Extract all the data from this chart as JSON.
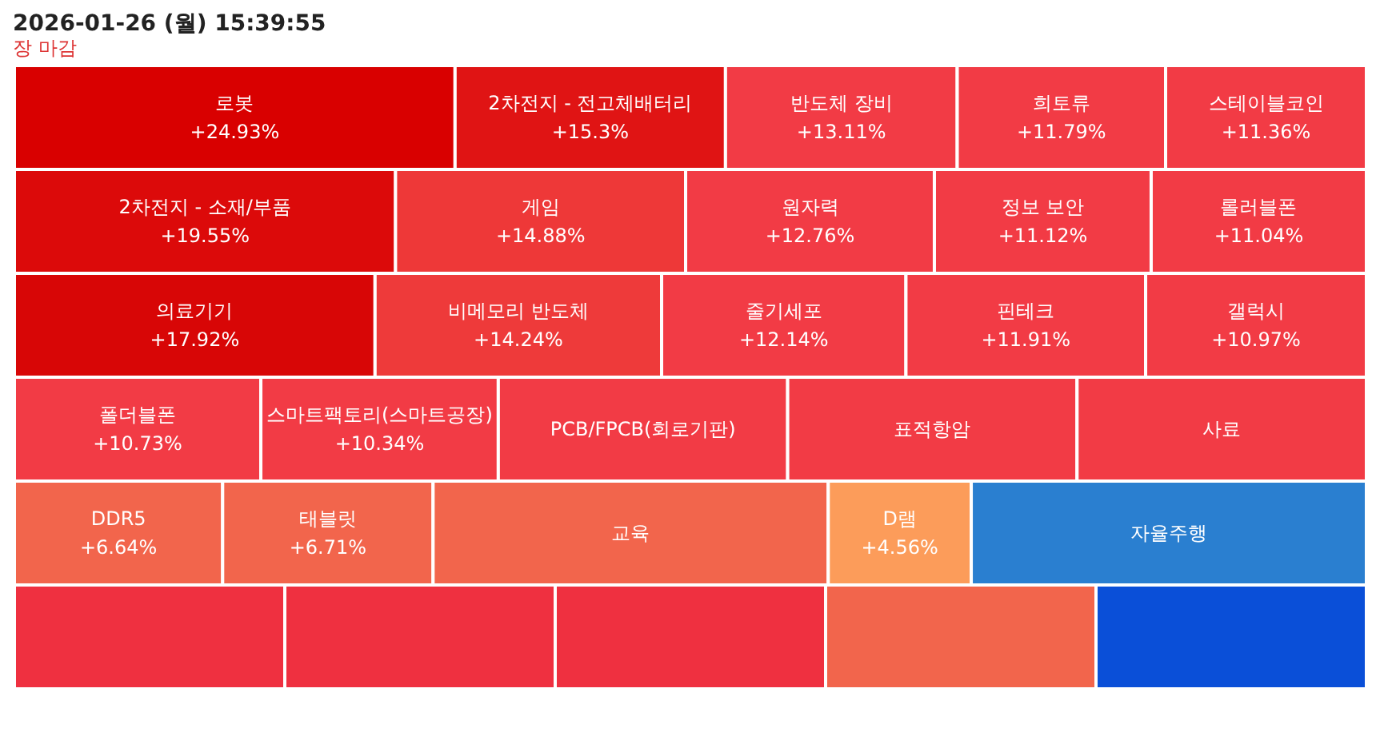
{
  "chart_data": {
    "type": "other",
    "title": "2026-01-26 (월) 15:39:55",
    "subtitle": "장 마감",
    "categories": [
      "로봇",
      "2차전지 - 전고체배터리",
      "반도체 장비",
      "희토류",
      "스테이블코인",
      "2차전지 - 소재/부품",
      "게임",
      "원자력",
      "정보 보안",
      "롤러블폰",
      "의료기기",
      "비메모리 반도체",
      "줄기세포",
      "핀테크",
      "갤럭시",
      "폴더블폰",
      "스마트팩토리(스마트공장)",
      "PCB/FPCB(회로기판)",
      "표적항암",
      "사료",
      "DDR5",
      "태블릿",
      "교육",
      "D램",
      "자율주행",
      null,
      null,
      null,
      null,
      null
    ],
    "values": [
      24.93,
      15.3,
      13.11,
      11.79,
      11.36,
      19.55,
      14.88,
      12.76,
      11.12,
      11.04,
      17.92,
      14.24,
      12.14,
      11.91,
      10.97,
      10.73,
      10.34,
      null,
      null,
      null,
      6.64,
      6.71,
      null,
      4.56,
      null,
      null,
      null,
      null,
      null,
      null
    ],
    "value_labels": [
      "+24.93%",
      "+15.3%",
      "+13.11%",
      "+11.79%",
      "+11.36%",
      "+19.55%",
      "+14.88%",
      "+12.76%",
      "+11.12%",
      "+11.04%",
      "+17.92%",
      "+14.24%",
      "+12.14%",
      "+11.91%",
      "+10.97%",
      "+10.73%",
      "+10.34%",
      null,
      null,
      null,
      "+6.64%",
      "+6.71%",
      null,
      "+4.56%",
      null,
      null,
      null,
      null,
      null,
      null
    ],
    "colors": [
      "#d90000",
      "#e01414",
      "#f23b45",
      "#f23b45",
      "#f23b45",
      "#dc0a0a",
      "#ee3838",
      "#f23b45",
      "#f23b45",
      "#f23b45",
      "#d80606",
      "#ee3a3a",
      "#f23b45",
      "#f23b45",
      "#f23b45",
      "#f23b45",
      "#f23b45",
      "#f23b45",
      "#f23b45",
      "#f23b45",
      "#f2654c",
      "#f2654c",
      "#f2654c",
      "#fc9c5a",
      "#2a7fd0",
      "#ef3040",
      "#ef3040",
      "#ef3040",
      "#f2654c",
      "#0a4fd8"
    ]
  }
}
